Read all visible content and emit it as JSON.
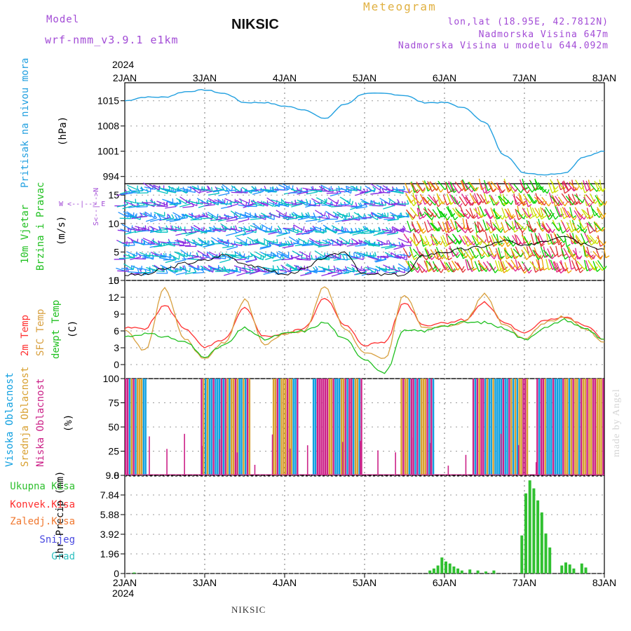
{
  "header": {
    "model_label": "Model",
    "model_value": "wrf-nmm_v3.9.1  e1km",
    "city": "NIKSIC",
    "title": "Meteogram",
    "lonlat": "lon,lat (18.95E, 42.7812N)",
    "elevation": "Nadmorska Visina 647m",
    "model_elevation": "Nadmorska Visina u modelu 644.092m"
  },
  "footer": {
    "city": "NIKSIC",
    "watermark": "made by Angel"
  },
  "time_axis": {
    "year": "2024",
    "labels": [
      "2JAN",
      "3JAN",
      "4JAN",
      "5JAN",
      "6JAN",
      "7JAN",
      "8JAN"
    ]
  },
  "panels": {
    "pressure": {
      "label_main": "Pritisak na nivou mora",
      "unit": "(hPa)",
      "color": "#22a0e0"
    },
    "wind": {
      "label1": "10m Vjetar",
      "label2": "Brzina i Pravac",
      "unit": "(m/s)",
      "rose_n": "N",
      "rose_e": "E",
      "rose_w": "W",
      "rose_s": "S"
    },
    "temp": {
      "label_2m": "2m Temp",
      "label_sfc": "SFC Temp",
      "label_dew": "dewpt Temp",
      "unit": "(C)"
    },
    "cloud": {
      "label_high": "Visoka Oblacnost",
      "label_mid": "Srednja Oblacnost",
      "label_low": "Niska Oblacnost",
      "unit": "(%)"
    },
    "precip": {
      "unit": "1hr Precip (mm)",
      "legend": [
        "Ukupna Kisa",
        "Konvek.Kisa",
        "Zaledj.Kisa",
        "Snijeg",
        "Grad"
      ]
    }
  },
  "chart_data": [
    {
      "type": "line",
      "name": "pressure",
      "ylabel": "Pritisak na nivou mora (hPa)",
      "ylim": [
        992,
        1020
      ],
      "yticks": [
        994,
        1001,
        1008,
        1015
      ],
      "x": [
        0,
        0.25,
        0.5,
        0.75,
        1.0,
        1.25,
        1.5,
        1.75,
        2.0,
        2.25,
        2.5,
        2.75,
        3.0,
        3.25,
        3.5,
        3.75,
        4.0,
        4.25,
        4.5,
        4.75,
        5.0,
        5.25,
        5.5,
        5.75,
        6.0
      ],
      "values": [
        1015,
        1016,
        1016,
        1017.5,
        1018,
        1017,
        1014.5,
        1014.5,
        1013.5,
        1012.5,
        1010,
        1014,
        1017,
        1017,
        1016.5,
        1014.5,
        1014.5,
        1013,
        1009,
        1000,
        995,
        994.5,
        995,
        999.5,
        1001
      ],
      "color": "#22a0e0"
    },
    {
      "type": "line",
      "name": "wind speed",
      "ylabel": "(m/s)",
      "ylim": [
        0,
        17
      ],
      "yticks": [
        0,
        5,
        10,
        15
      ],
      "x": [
        0,
        0.25,
        0.5,
        0.75,
        1.0,
        1.25,
        1.5,
        1.75,
        2.0,
        2.25,
        2.5,
        2.75,
        3.0,
        3.25,
        3.5,
        3.75,
        4.0,
        4.25,
        4.5,
        4.75,
        5.0,
        5.25,
        5.5,
        5.75,
        6.0
      ],
      "values": [
        1,
        1,
        2,
        3,
        3.5,
        4.5,
        3,
        2,
        1,
        2,
        4,
        5,
        1,
        1,
        1,
        4.5,
        5,
        5.5,
        6,
        7,
        6,
        7,
        8,
        6.5,
        5.5
      ],
      "direction_sectors": [
        {
          "from": 0,
          "to": 3.55,
          "colors": [
            "#8a2be2",
            "#1e90ff",
            "#00c0c0"
          ]
        },
        {
          "from": 3.55,
          "to": 6.0,
          "colors": [
            "#00d000",
            "#c8e000",
            "#f0a000",
            "#e03030",
            "#e0208a"
          ]
        }
      ]
    },
    {
      "type": "line",
      "name": "temperature",
      "ylabel": "(C)",
      "ylim": [
        -2.5,
        15
      ],
      "yticks": [
        0,
        3,
        6,
        9,
        12,
        15
      ],
      "x": [
        0,
        0.25,
        0.5,
        0.75,
        1.0,
        1.25,
        1.5,
        1.75,
        2.0,
        2.25,
        2.5,
        2.75,
        3.0,
        3.25,
        3.5,
        3.75,
        4.0,
        4.25,
        4.5,
        4.75,
        5.0,
        5.25,
        5.5,
        5.75,
        6.0
      ],
      "series": [
        {
          "name": "2m Temp",
          "color": "#ff3030",
          "values": [
            6.5,
            6.5,
            10.5,
            6.5,
            3.0,
            4.5,
            10.0,
            5.0,
            5.5,
            6.5,
            12.0,
            7.0,
            3.5,
            4.0,
            11.0,
            7.0,
            7.5,
            8.0,
            11.0,
            7.5,
            5.5,
            8.0,
            8.5,
            7.0,
            4.5
          ]
        },
        {
          "name": "SFC Temp",
          "color": "#d8a040",
          "values": [
            6.0,
            2.5,
            13.5,
            4.5,
            1.0,
            4.0,
            11.5,
            3.5,
            5.5,
            6.0,
            14.0,
            6.5,
            2.0,
            1.0,
            12.5,
            6.5,
            7.0,
            7.5,
            12.5,
            7.0,
            4.5,
            7.5,
            8.5,
            6.5,
            4.0
          ]
        },
        {
          "name": "dewpt Temp",
          "color": "#20c020",
          "values": [
            5.0,
            5.5,
            5.0,
            4.0,
            1.5,
            3.5,
            6.5,
            4.5,
            5.5,
            6.0,
            7.5,
            4.5,
            1.0,
            -1.5,
            6.0,
            6.0,
            7.0,
            7.5,
            7.5,
            6.5,
            4.5,
            6.5,
            8.0,
            6.5,
            4.5
          ]
        }
      ]
    },
    {
      "type": "bar",
      "name": "cloud cover",
      "ylabel": "(%)",
      "ylim": [
        0,
        100
      ],
      "yticks": [
        0,
        25,
        50,
        75,
        100
      ],
      "series": [
        {
          "name": "Visoka Oblacnost",
          "color": "#10a0e0"
        },
        {
          "name": "Srednja Oblacnost",
          "color": "#d8a030"
        },
        {
          "name": "Niska Oblacnost",
          "color": "#cc2288"
        }
      ],
      "blocks": [
        {
          "from": 0.0,
          "to": 0.25,
          "value": 100
        },
        {
          "from": 0.95,
          "to": 1.55,
          "value": 100
        },
        {
          "from": 1.85,
          "to": 2.15,
          "value": 100
        },
        {
          "from": 2.35,
          "to": 2.95,
          "value": 100
        },
        {
          "from": 3.45,
          "to": 3.85,
          "value": 100
        },
        {
          "from": 4.35,
          "to": 5.05,
          "value": 100
        },
        {
          "from": 5.15,
          "to": 6.0,
          "value": 100
        }
      ]
    },
    {
      "type": "bar",
      "name": "precipitation",
      "ylabel": "1hr Precip (mm)",
      "ylim": [
        0,
        9.8
      ],
      "yticks": [
        0,
        1.96,
        3.92,
        5.88,
        7.84,
        9.8
      ],
      "color": "#30c030",
      "x": [
        0.1,
        3.8,
        3.85,
        3.9,
        3.95,
        4.0,
        4.05,
        4.1,
        4.15,
        4.2,
        4.3,
        4.4,
        4.5,
        4.6,
        4.95,
        5.0,
        5.05,
        5.1,
        5.15,
        5.2,
        5.25,
        5.3,
        5.45,
        5.5,
        5.55,
        5.6,
        5.7,
        5.75
      ],
      "values": [
        0.1,
        0.3,
        0.5,
        0.8,
        1.6,
        1.2,
        1.0,
        0.7,
        0.5,
        0.3,
        0.4,
        0.3,
        0.2,
        0.3,
        3.8,
        8.0,
        9.3,
        8.5,
        7.3,
        6.1,
        4.0,
        2.6,
        0.8,
        1.1,
        0.9,
        0.5,
        1.0,
        0.6
      ]
    }
  ]
}
